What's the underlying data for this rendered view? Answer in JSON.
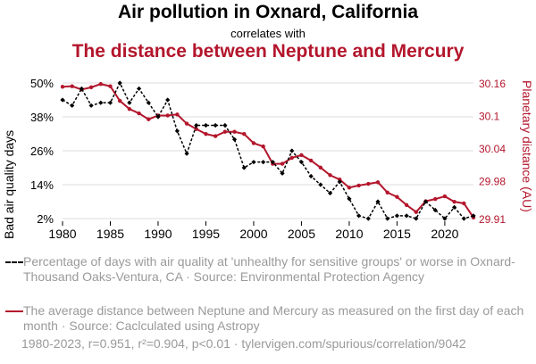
{
  "header": {
    "title": "Air pollution in Oxnard, California",
    "connector": "correlates with",
    "title2": "The distance between Neptune and Mercury"
  },
  "legend": {
    "series1": "Percentage of days with air quality at 'unhealthy for sensitive groups' or worse in Oxnard-Thousand Oaks-Ventura, CA · Source: Environmental Protection Agency",
    "series2": "The average distance between Neptune and Mercury as measured on the first day of each month · Source: Caclculated using Astropy"
  },
  "footer": "1980-2023, r=0.951, r²=0.904, p<0.01 · tylervigen.com/spurious/correlation/9042",
  "colors": {
    "series1": "#000000",
    "series2": "#b3162c",
    "grid": "#dddddd"
  },
  "chart_data": {
    "type": "line",
    "title": "Air pollution in Oxnard, California",
    "ylabel_left": "Bad air quality days",
    "ylabel_right": "Planetary distance (AU)",
    "xlim": [
      1980,
      2023
    ],
    "xticks": [
      1980,
      1985,
      1990,
      1995,
      2000,
      2005,
      2010,
      2015,
      2020
    ],
    "xtick_labels": [
      "1980",
      "1985",
      "1990",
      "1995",
      "2000",
      "2005",
      "2010",
      "2015",
      "2020"
    ],
    "y_left": {
      "min": 2,
      "max": 50,
      "ticks": [
        2,
        14,
        26,
        38,
        50
      ],
      "labels": [
        "2%",
        "14%",
        "26%",
        "38%",
        "50%"
      ]
    },
    "y_right": {
      "min": 29.91,
      "max": 30.16,
      "ticks": [
        29.91,
        29.98,
        30.04,
        30.1,
        30.16
      ],
      "labels": [
        "29.91",
        "29.98",
        "30.04",
        "30.1",
        "30.16"
      ]
    },
    "x": [
      1980,
      1981,
      1982,
      1983,
      1984,
      1985,
      1986,
      1987,
      1988,
      1989,
      1990,
      1991,
      1992,
      1993,
      1994,
      1995,
      1996,
      1997,
      1998,
      1999,
      2000,
      2001,
      2002,
      2003,
      2004,
      2005,
      2006,
      2007,
      2008,
      2009,
      2010,
      2011,
      2012,
      2013,
      2014,
      2015,
      2016,
      2017,
      2018,
      2019,
      2020,
      2021,
      2022,
      2023
    ],
    "series": [
      {
        "name": "Bad air quality days (%)",
        "axis": "left",
        "style": "dashed-diamond",
        "values": [
          44,
          42,
          48,
          42,
          43,
          43,
          50,
          43,
          48,
          43,
          38,
          44,
          33,
          25,
          35,
          35,
          35,
          35,
          30,
          20,
          22,
          22,
          22,
          18,
          26,
          22,
          17,
          14,
          11,
          15,
          9,
          3,
          2,
          8,
          2,
          3,
          3,
          2,
          8,
          5,
          2,
          6,
          2,
          3
        ]
      },
      {
        "name": "Neptune–Mercury distance (AU)",
        "axis": "right",
        "style": "solid-dot",
        "values": [
          30.153,
          30.154,
          30.148,
          30.152,
          30.158,
          30.154,
          30.127,
          30.112,
          30.104,
          30.093,
          30.1,
          30.1,
          30.102,
          30.085,
          30.075,
          30.066,
          30.062,
          30.07,
          30.07,
          30.066,
          30.049,
          30.043,
          30.011,
          30.011,
          30.022,
          30.027,
          30.017,
          30.004,
          29.99,
          29.982,
          29.967,
          29.971,
          29.974,
          29.977,
          29.958,
          29.95,
          29.935,
          29.922,
          29.942,
          29.946,
          29.951,
          29.941,
          29.938,
          29.912
        ]
      }
    ]
  }
}
